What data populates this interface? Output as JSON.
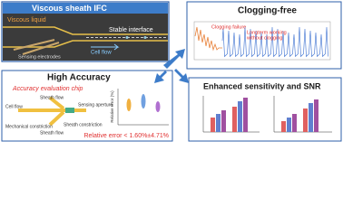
{
  "panels": {
    "ifc": {
      "title": "Viscous sheath IFC",
      "labels": [
        "Viscous liquid",
        "Sensing electrodes",
        "Stable interface",
        "Cell flow"
      ]
    },
    "clogging": {
      "title": "Clogging-free",
      "labels": [
        "Clogging failure",
        "Longterm working",
        "without clogging"
      ]
    },
    "accuracy": {
      "title": "High Accuracy",
      "chip_title": "Accuracy evaluation chip",
      "labels": [
        "Sheath flow",
        "Cell flow",
        "Sheath flow",
        "Mechanical constriction",
        "Sheath constriction",
        "Sensing aperture"
      ],
      "y_label": "Relative error (%)",
      "result": "Relative error < 1.60%±4.71%"
    },
    "sensitivity": {
      "title": "Enhanced sensitivity and SNR"
    }
  }
}
